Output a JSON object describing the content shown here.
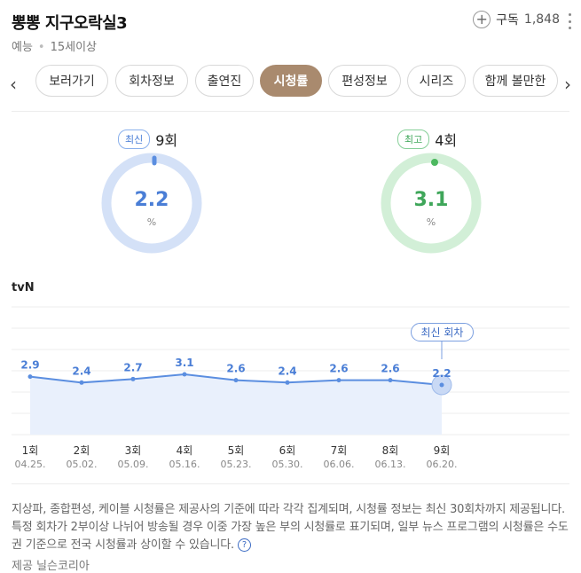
{
  "header": {
    "title": "뽕뽕 지구오락실3",
    "genre": "예능",
    "rating": "15세이상",
    "subscribe_label": "구독",
    "subscribe_count": "1,848"
  },
  "tabs": [
    {
      "label": "보러가기",
      "active": false
    },
    {
      "label": "회차정보",
      "active": false
    },
    {
      "label": "출연진",
      "active": false
    },
    {
      "label": "시청률",
      "active": true
    },
    {
      "label": "편성정보",
      "active": false
    },
    {
      "label": "시리즈",
      "active": false
    },
    {
      "label": "함께 볼만한",
      "active": false
    }
  ],
  "latest": {
    "badge": "최신",
    "episode": "9회",
    "value": "2.2",
    "unit": "%",
    "color": "#5b8ee0",
    "track": "#d4e1f7"
  },
  "best": {
    "badge": "최고",
    "episode": "4회",
    "value": "3.1",
    "unit": "%",
    "color": "#4cb85f",
    "track": "#d2efd7"
  },
  "channel": "tvN",
  "tooltip": "최신 회차",
  "chart_data": {
    "type": "area",
    "series": [
      {
        "values": [
          2.9,
          2.4,
          2.7,
          3.1,
          2.6,
          2.4,
          2.6,
          2.6,
          2.2
        ]
      }
    ],
    "categories": [
      "1회",
      "2회",
      "3회",
      "4회",
      "5회",
      "6회",
      "7회",
      "8회",
      "9회"
    ],
    "dates": [
      "04.25.",
      "05.02.",
      "05.09.",
      "05.16.",
      "05.23.",
      "05.30.",
      "06.06.",
      "06.13.",
      "06.20."
    ],
    "line_color": "#5b8ee0",
    "fill_color": "#e9f0fc",
    "grid": true
  },
  "note": "지상파, 종합편성, 케이블 시청률은 제공사의 기준에 따라 각각 집계되며, 시청률 정보는 최신 30회차까지 제공됩니다. 특정 회차가 2부이상 나뉘어 방송될 경우 이중 가장 높은 부의 시청률로 표기되며, 일부 뉴스 프로그램의 시청률은 수도권 기준으로 전국 시청률과 상이할 수 있습니다.",
  "source": "제공 닐슨코리아"
}
